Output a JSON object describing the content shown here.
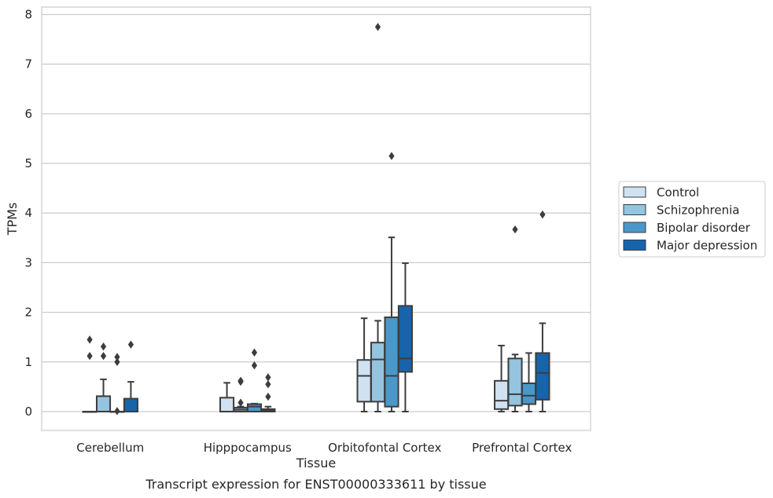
{
  "chart_data": {
    "type": "box",
    "caption": "Transcript expression for ENST00000333611 by tissue",
    "xlabel": "Tissue",
    "ylabel": "TPMs",
    "ylim": [
      -0.38,
      8.15
    ],
    "yticks": [
      0,
      1,
      2,
      3,
      4,
      5,
      6,
      7,
      8
    ],
    "grid": true,
    "legend_position": "right",
    "categories": [
      "Cerebellum",
      "Hipppocampus",
      "Orbitofontal Cortex",
      "Prefrontal Cortex"
    ],
    "series": [
      {
        "name": "Control",
        "color": "#d0e1f2",
        "boxes": [
          {
            "q1": 0,
            "median": 0,
            "q3": 0,
            "whisker_low": 0,
            "whisker_high": 0,
            "outliers": [
              1.45,
              1.12
            ]
          },
          {
            "q1": 0,
            "median": 0,
            "q3": 0.28,
            "whisker_low": 0,
            "whisker_high": 0.58,
            "outliers": []
          },
          {
            "q1": 0.2,
            "median": 0.72,
            "q3": 1.04,
            "whisker_low": 0,
            "whisker_high": 1.88,
            "outliers": []
          },
          {
            "q1": 0.05,
            "median": 0.22,
            "q3": 0.62,
            "whisker_low": 0,
            "whisker_high": 1.33,
            "outliers": []
          }
        ]
      },
      {
        "name": "Schizophrenia",
        "color": "#94c4df",
        "boxes": [
          {
            "q1": 0,
            "median": 0,
            "q3": 0.31,
            "whisker_low": 0,
            "whisker_high": 0.65,
            "outliers": [
              1.31,
              1.12
            ]
          },
          {
            "q1": 0,
            "median": 0.04,
            "q3": 0.08,
            "whisker_low": 0,
            "whisker_high": 0.1,
            "outliers": [
              0.62,
              0.6,
              0.18
            ]
          },
          {
            "q1": 0.2,
            "median": 1.05,
            "q3": 1.39,
            "whisker_low": 0,
            "whisker_high": 1.83,
            "outliers": [
              7.75
            ]
          },
          {
            "q1": 0.12,
            "median": 0.35,
            "q3": 1.07,
            "whisker_low": 0,
            "whisker_high": 1.15,
            "outliers": [
              3.67
            ]
          }
        ]
      },
      {
        "name": "Bipolar disorder",
        "color": "#4a98c9",
        "boxes": [
          {
            "q1": 0,
            "median": 0,
            "q3": 0,
            "whisker_low": 0,
            "whisker_high": 0,
            "outliers": [
              1.1,
              1.0,
              0.01
            ]
          },
          {
            "q1": 0,
            "median": 0.1,
            "q3": 0.15,
            "whisker_low": 0,
            "whisker_high": 0.16,
            "outliers": [
              1.19,
              0.93
            ]
          },
          {
            "q1": 0.1,
            "median": 0.72,
            "q3": 1.9,
            "whisker_low": 0,
            "whisker_high": 3.51,
            "outliers": [
              5.15
            ]
          },
          {
            "q1": 0.15,
            "median": 0.32,
            "q3": 0.57,
            "whisker_low": 0,
            "whisker_high": 1.18,
            "outliers": []
          }
        ]
      },
      {
        "name": "Major depression",
        "color": "#1764ab",
        "boxes": [
          {
            "q1": 0,
            "median": 0,
            "q3": 0.26,
            "whisker_low": 0,
            "whisker_high": 0.6,
            "outliers": [
              1.35
            ]
          },
          {
            "q1": 0,
            "median": 0.02,
            "q3": 0.05,
            "whisker_low": 0,
            "whisker_high": 0.1,
            "outliers": [
              0.69,
              0.55,
              0.3
            ]
          },
          {
            "q1": 0.8,
            "median": 1.07,
            "q3": 2.13,
            "whisker_low": 0,
            "whisker_high": 2.99,
            "outliers": []
          },
          {
            "q1": 0.24,
            "median": 0.78,
            "q3": 1.18,
            "whisker_low": 0,
            "whisker_high": 1.78,
            "outliers": [
              3.97
            ]
          }
        ]
      }
    ]
  }
}
